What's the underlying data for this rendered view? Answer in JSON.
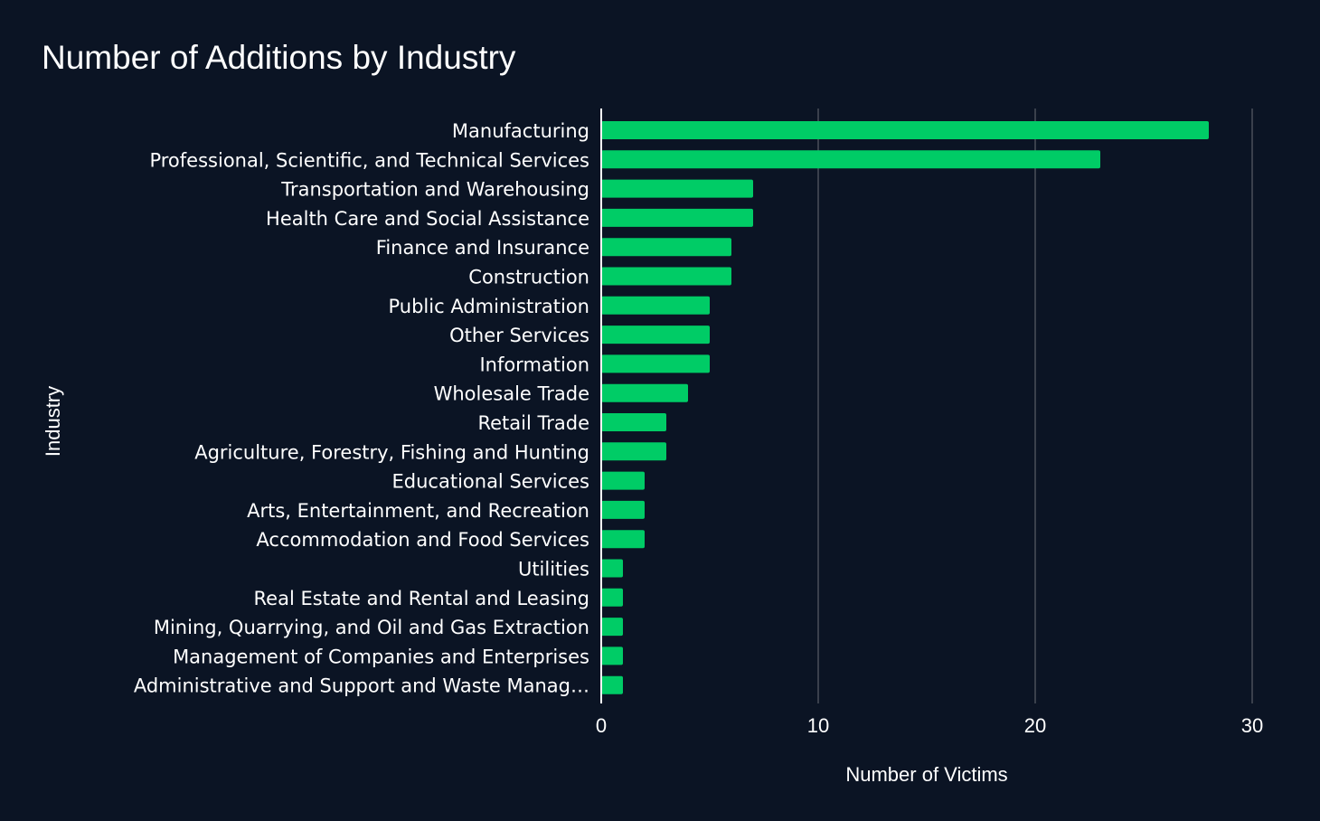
{
  "chart_data": {
    "type": "bar",
    "orientation": "horizontal",
    "title": "Number of Additions by Industry",
    "xlabel": "Number of Victims",
    "ylabel": "Industry",
    "xlim": [
      0,
      30
    ],
    "xticks": [
      0,
      10,
      20,
      30
    ],
    "grid": true,
    "categories": [
      "Manufacturing",
      "Professional, Scientific, and Technical Services",
      "Transportation and Warehousing",
      "Health Care and Social Assistance",
      "Finance and Insurance",
      "Construction",
      "Public Administration",
      "Other Services",
      "Information",
      "Wholesale Trade",
      "Retail Trade",
      "Agriculture, Forestry, Fishing and Hunting",
      "Educational Services",
      "Arts, Entertainment, and Recreation",
      "Accommodation and Food Services",
      "Utilities",
      "Real Estate and Rental and Leasing",
      "Mining, Quarrying, and Oil and Gas Extraction",
      "Management of Companies and Enterprises",
      "Administrative and Support and Waste Manag…"
    ],
    "values": [
      28,
      23,
      7,
      7,
      6,
      6,
      5,
      5,
      5,
      4,
      3,
      3,
      2,
      2,
      2,
      1,
      1,
      1,
      1,
      1
    ],
    "colors": {
      "background": "#0b1424",
      "bar": "#00cc66",
      "grid": "#4a4f5a",
      "axis": "#ffffff",
      "text": "#ffffff"
    }
  }
}
